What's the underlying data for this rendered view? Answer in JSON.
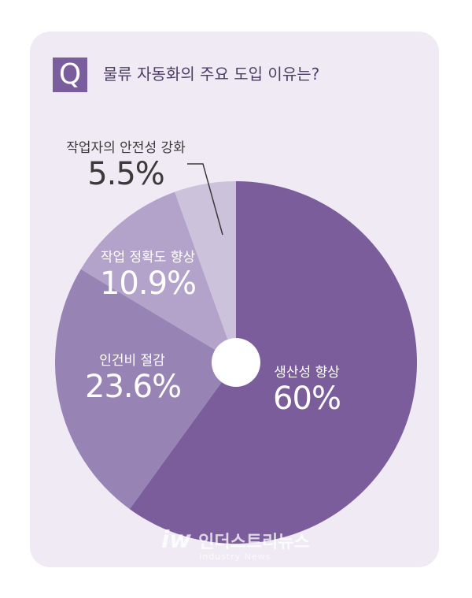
{
  "question": {
    "badge": "Q",
    "text": "물류 자동화의 주요 도입 이유는?"
  },
  "chart_data": {
    "type": "pie",
    "title": "물류 자동화의 주요 도입 이유는?",
    "categories": [
      "생산성 향상",
      "인건비 절감",
      "작업 정확도 향상",
      "작업자의 안전성 강화"
    ],
    "values": [
      60,
      23.6,
      10.9,
      5.5
    ],
    "value_labels": [
      "60%",
      "23.6%",
      "10.9%",
      "5.5%"
    ],
    "colors": [
      "#7b5d9b",
      "#9883b5",
      "#b3a3ca",
      "#cdc2dc"
    ]
  },
  "watermark": {
    "logo": "iw",
    "name": "인더스트리뉴스",
    "sub": "Industry News"
  }
}
